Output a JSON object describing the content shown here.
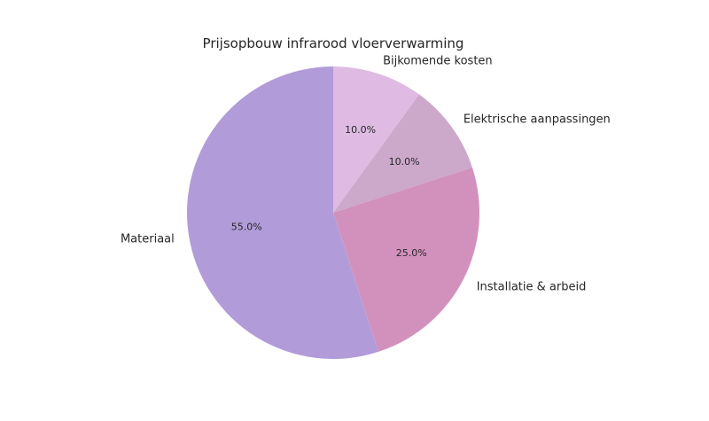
{
  "chart_data": {
    "type": "pie",
    "title": "Prijsopbouw infrarood vloerverwarming",
    "categories": [
      "Bijkomende kosten",
      "Elektrische aanpassingen",
      "Installatie & arbeid",
      "Materiaal"
    ],
    "values": [
      10.0,
      10.0,
      25.0,
      55.0
    ],
    "value_labels": [
      "10.0%",
      "10.0%",
      "25.0%",
      "55.0%"
    ],
    "colors": [
      "#dfbbe4",
      "#cca8cb",
      "#d291bd",
      "#b19cd9"
    ],
    "start_angle_deg": 90,
    "direction": "clockwise",
    "legend": "none"
  }
}
